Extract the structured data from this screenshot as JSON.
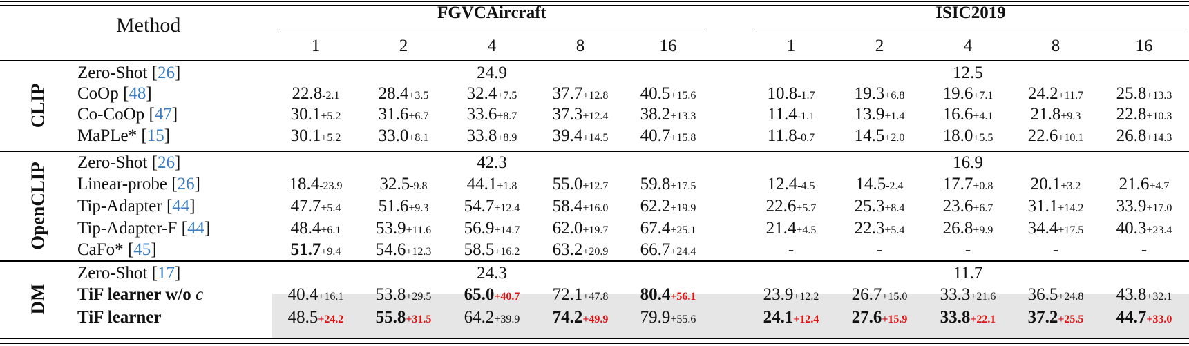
{
  "header": {
    "method": "Method",
    "datasets": [
      "FGVCAircraft",
      "ISIC2019"
    ],
    "shots": [
      "1",
      "2",
      "4",
      "8",
      "16"
    ]
  },
  "groups": [
    {
      "label": "CLIP"
    },
    {
      "label": "OpenCLIP"
    },
    {
      "label": "DM"
    }
  ],
  "rows": [
    {
      "group": "CLIP",
      "name": "Zero-Shot",
      "cite": "26",
      "zero_shot": {
        "FGVCAircraft": "24.9",
        "ISIC2019": "12.5"
      }
    },
    {
      "group": "CLIP",
      "name": "CoOp",
      "cite": "48",
      "cells": [
        {
          "v": "22.8",
          "d": "-2.1"
        },
        {
          "v": "28.4",
          "d": "+3.5"
        },
        {
          "v": "32.4",
          "d": "+7.5"
        },
        {
          "v": "37.7",
          "d": "+12.8"
        },
        {
          "v": "40.5",
          "d": "+15.6"
        },
        {
          "v": "10.8",
          "d": "-1.7"
        },
        {
          "v": "19.3",
          "d": "+6.8"
        },
        {
          "v": "19.6",
          "d": "+7.1"
        },
        {
          "v": "24.2",
          "d": "+11.7"
        },
        {
          "v": "25.8",
          "d": "+13.3"
        }
      ]
    },
    {
      "group": "CLIP",
      "name": "Co-CoOp",
      "cite": "47",
      "cells": [
        {
          "v": "30.1",
          "d": "+5.2"
        },
        {
          "v": "31.6",
          "d": "+6.7"
        },
        {
          "v": "33.6",
          "d": "+8.7"
        },
        {
          "v": "37.3",
          "d": "+12.4"
        },
        {
          "v": "38.2",
          "d": "+13.3"
        },
        {
          "v": "11.4",
          "d": "-1.1"
        },
        {
          "v": "13.9",
          "d": "+1.4"
        },
        {
          "v": "16.6",
          "d": "+4.1"
        },
        {
          "v": "21.8",
          "d": "+9.3"
        },
        {
          "v": "22.8",
          "d": "+10.3"
        }
      ]
    },
    {
      "group": "CLIP",
      "name": "MaPLe*",
      "cite": "15",
      "cells": [
        {
          "v": "30.1",
          "d": "+5.2"
        },
        {
          "v": "33.0",
          "d": "+8.1"
        },
        {
          "v": "33.8",
          "d": "+8.9"
        },
        {
          "v": "39.4",
          "d": "+14.5"
        },
        {
          "v": "40.7",
          "d": "+15.8"
        },
        {
          "v": "11.8",
          "d": "-0.7"
        },
        {
          "v": "14.5",
          "d": "+2.0"
        },
        {
          "v": "18.0",
          "d": "+5.5"
        },
        {
          "v": "22.6",
          "d": "+10.1"
        },
        {
          "v": "26.8",
          "d": "+14.3"
        }
      ]
    },
    {
      "group": "OpenCLIP",
      "name": "Zero-Shot",
      "cite": "26",
      "zero_shot": {
        "FGVCAircraft": "42.3",
        "ISIC2019": "16.9"
      }
    },
    {
      "group": "OpenCLIP",
      "name": "Linear-probe",
      "cite": "26",
      "cells": [
        {
          "v": "18.4",
          "d": "-23.9"
        },
        {
          "v": "32.5",
          "d": "-9.8"
        },
        {
          "v": "44.1",
          "d": "+1.8"
        },
        {
          "v": "55.0",
          "d": "+12.7"
        },
        {
          "v": "59.8",
          "d": "+17.5"
        },
        {
          "v": "12.4",
          "d": "-4.5"
        },
        {
          "v": "14.5",
          "d": "-2.4"
        },
        {
          "v": "17.7",
          "d": "+0.8"
        },
        {
          "v": "20.1",
          "d": "+3.2"
        },
        {
          "v": "21.6",
          "d": "+4.7"
        }
      ]
    },
    {
      "group": "OpenCLIP",
      "name": "Tip-Adapter",
      "cite": "44",
      "cells": [
        {
          "v": "47.7",
          "d": "+5.4"
        },
        {
          "v": "51.6",
          "d": "+9.3"
        },
        {
          "v": "54.7",
          "d": "+12.4"
        },
        {
          "v": "58.4",
          "d": "+16.0"
        },
        {
          "v": "62.2",
          "d": "+19.9"
        },
        {
          "v": "22.6",
          "d": "+5.7"
        },
        {
          "v": "25.3",
          "d": "+8.4"
        },
        {
          "v": "23.6",
          "d": "+6.7"
        },
        {
          "v": "31.1",
          "d": "+14.2"
        },
        {
          "v": "33.9",
          "d": "+17.0"
        }
      ]
    },
    {
      "group": "OpenCLIP",
      "name": "Tip-Adapter-F",
      "cite": "44",
      "cells": [
        {
          "v": "48.4",
          "d": "+6.1"
        },
        {
          "v": "53.9",
          "d": "+11.6"
        },
        {
          "v": "56.9",
          "d": "+14.7"
        },
        {
          "v": "62.0",
          "d": "+19.7"
        },
        {
          "v": "67.4",
          "d": "+25.1"
        },
        {
          "v": "21.4",
          "d": "+4.5"
        },
        {
          "v": "22.3",
          "d": "+5.4"
        },
        {
          "v": "26.8",
          "d": "+9.9"
        },
        {
          "v": "34.4",
          "d": "+17.5"
        },
        {
          "v": "40.3",
          "d": "+23.4"
        }
      ]
    },
    {
      "group": "OpenCLIP",
      "name": "CaFo*",
      "cite": "45",
      "cells": [
        {
          "v": "51.7",
          "d": "+9.4",
          "bold": true
        },
        {
          "v": "54.6",
          "d": "+12.3"
        },
        {
          "v": "58.5",
          "d": "+16.2"
        },
        {
          "v": "63.2",
          "d": "+20.9"
        },
        {
          "v": "66.7",
          "d": "+24.4"
        },
        {
          "v": "-",
          "d": ""
        },
        {
          "v": "-",
          "d": ""
        },
        {
          "v": "-",
          "d": ""
        },
        {
          "v": "-",
          "d": ""
        },
        {
          "v": "-",
          "d": ""
        }
      ]
    },
    {
      "group": "DM",
      "name": "Zero-Shot",
      "cite": "17",
      "zero_shot": {
        "FGVCAircraft": "24.3",
        "ISIC2019": "11.7"
      }
    },
    {
      "group": "DM",
      "name": "TiF learner w/o",
      "name_suffix": "c",
      "bold": true,
      "cells": [
        {
          "v": "40.4",
          "d": "+16.1"
        },
        {
          "v": "53.8",
          "d": "+29.5"
        },
        {
          "v": "65.0",
          "d": "+40.7",
          "bold": true,
          "red": true
        },
        {
          "v": "72.1",
          "d": "+47.8"
        },
        {
          "v": "80.4",
          "d": "+56.1",
          "bold": true,
          "red": true
        },
        {
          "v": "23.9",
          "d": "+12.2"
        },
        {
          "v": "26.7",
          "d": "+15.0"
        },
        {
          "v": "33.3",
          "d": "+21.6"
        },
        {
          "v": "36.5",
          "d": "+24.8"
        },
        {
          "v": "43.8",
          "d": "+32.1"
        }
      ]
    },
    {
      "group": "DM",
      "name": "TiF learner",
      "bold": true,
      "cells": [
        {
          "v": "48.5",
          "d": "+24.2",
          "red": true
        },
        {
          "v": "55.8",
          "d": "+31.5",
          "bold": true,
          "red": true
        },
        {
          "v": "64.2",
          "d": "+39.9"
        },
        {
          "v": "74.2",
          "d": "+49.9",
          "bold": true,
          "red": true
        },
        {
          "v": "79.9",
          "d": "+55.6"
        },
        {
          "v": "24.1",
          "d": "+12.4",
          "bold": true,
          "red": true
        },
        {
          "v": "27.6",
          "d": "+15.9",
          "bold": true,
          "red": true
        },
        {
          "v": "33.8",
          "d": "+22.1",
          "bold": true,
          "red": true
        },
        {
          "v": "37.2",
          "d": "+25.5",
          "bold": true,
          "red": true
        },
        {
          "v": "44.7",
          "d": "+33.0",
          "bold": true,
          "red": true
        }
      ]
    }
  ],
  "colors": {
    "citation": "#3a7bbf",
    "highlight_delta": "#e01010",
    "shaded_row_bg": "#e6e6e6"
  }
}
